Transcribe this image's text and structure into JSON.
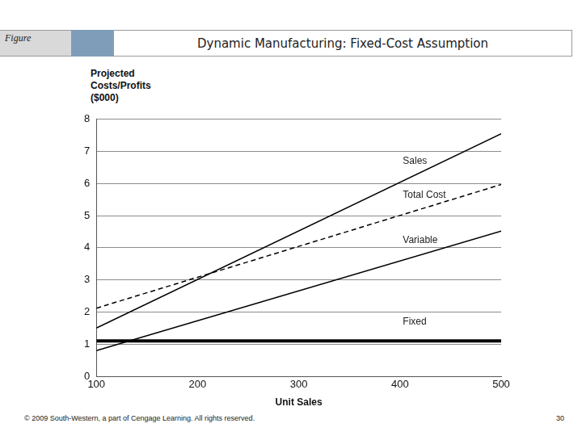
{
  "slide": {
    "label": "Figure",
    "title": "Dynamic Manufacturing: Fixed-Cost Assumption",
    "footer": "© 2009 South-Western, a part of Cengage Learning. All rights reserved.",
    "page": 30
  },
  "chart_data": {
    "type": "line",
    "x_label": "Unit Sales",
    "y_label": "Projected Costs/Profits ($000)",
    "xlim": [
      100,
      500
    ],
    "xticks": [
      100,
      200,
      300,
      400,
      500
    ],
    "ylim": [
      0,
      8
    ],
    "yticks": [
      0,
      1,
      2,
      3,
      4,
      5,
      6,
      7,
      8
    ],
    "grid": "y",
    "x": [
      100,
      500
    ],
    "series": [
      {
        "name": "Sales",
        "color": "#000000",
        "line_style": "solid",
        "values": [
          1.5,
          7.55
        ]
      },
      {
        "name": "Total Cost",
        "color": "#000000",
        "line_style": "dashed",
        "values": [
          2.12,
          5.97
        ]
      },
      {
        "name": "Variable",
        "color": "#000000",
        "line_style": "solid",
        "values": [
          0.8,
          4.52
        ]
      },
      {
        "name": "Fixed",
        "color": "#000000",
        "line_style": "thick",
        "values": [
          1.1,
          1.1
        ]
      }
    ]
  }
}
